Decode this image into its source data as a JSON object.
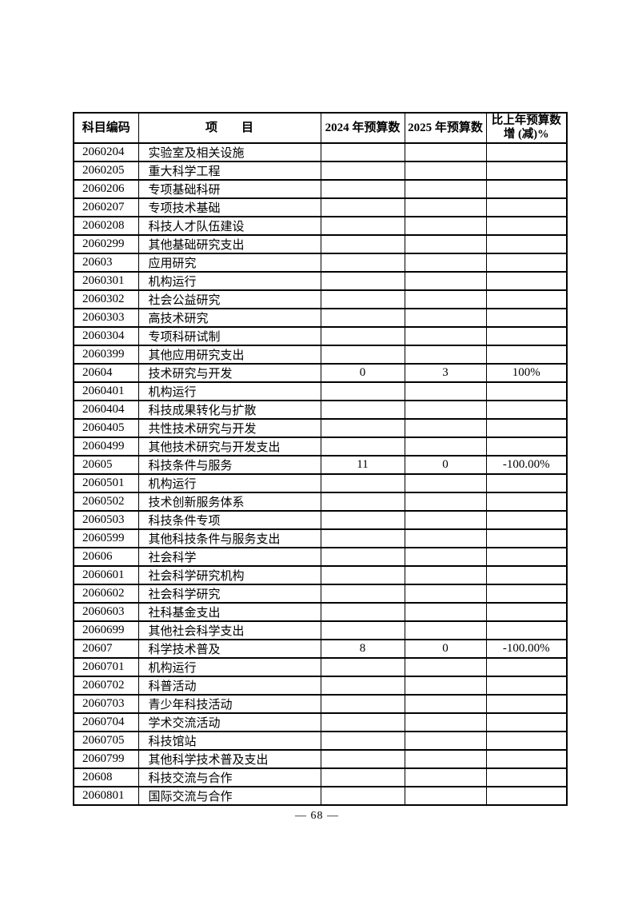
{
  "page": {
    "number_display": "— 68 —"
  },
  "table": {
    "headers": {
      "code": "科目编码",
      "item": "项　　目",
      "budget_2024": "2024 年预算数",
      "budget_2025": "2025 年预算数",
      "change": "比上年预算数\n增 (减)%"
    },
    "rows": [
      {
        "code": "2060204",
        "item": "实验室及相关设施",
        "y2024": "",
        "y2025": "",
        "change": ""
      },
      {
        "code": "2060205",
        "item": "重大科学工程",
        "y2024": "",
        "y2025": "",
        "change": ""
      },
      {
        "code": "2060206",
        "item": "专项基础科研",
        "y2024": "",
        "y2025": "",
        "change": ""
      },
      {
        "code": "2060207",
        "item": "专项技术基础",
        "y2024": "",
        "y2025": "",
        "change": ""
      },
      {
        "code": "2060208",
        "item": "科技人才队伍建设",
        "y2024": "",
        "y2025": "",
        "change": ""
      },
      {
        "code": "2060299",
        "item": "其他基础研究支出",
        "y2024": "",
        "y2025": "",
        "change": ""
      },
      {
        "code": "20603",
        "item": "应用研究",
        "y2024": "",
        "y2025": "",
        "change": ""
      },
      {
        "code": "2060301",
        "item": "机构运行",
        "y2024": "",
        "y2025": "",
        "change": ""
      },
      {
        "code": "2060302",
        "item": "社会公益研究",
        "y2024": "",
        "y2025": "",
        "change": ""
      },
      {
        "code": "2060303",
        "item": "高技术研究",
        "y2024": "",
        "y2025": "",
        "change": ""
      },
      {
        "code": "2060304",
        "item": "专项科研试制",
        "y2024": "",
        "y2025": "",
        "change": ""
      },
      {
        "code": "2060399",
        "item": "其他应用研究支出",
        "y2024": "",
        "y2025": "",
        "change": ""
      },
      {
        "code": "20604",
        "item": "技术研究与开发",
        "y2024": "0",
        "y2025": "3",
        "change": "100%"
      },
      {
        "code": "2060401",
        "item": "机构运行",
        "y2024": "",
        "y2025": "",
        "change": ""
      },
      {
        "code": "2060404",
        "item": "科技成果转化与扩散",
        "y2024": "",
        "y2025": "",
        "change": ""
      },
      {
        "code": "2060405",
        "item": "共性技术研究与开发",
        "y2024": "",
        "y2025": "",
        "change": ""
      },
      {
        "code": "2060499",
        "item": "其他技术研究与开发支出",
        "y2024": "",
        "y2025": "",
        "change": ""
      },
      {
        "code": "20605",
        "item": "科技条件与服务",
        "y2024": "11",
        "y2025": "0",
        "change": "-100.00%"
      },
      {
        "code": "2060501",
        "item": "机构运行",
        "y2024": "",
        "y2025": "",
        "change": ""
      },
      {
        "code": "2060502",
        "item": "技术创新服务体系",
        "y2024": "",
        "y2025": "",
        "change": ""
      },
      {
        "code": "2060503",
        "item": "科技条件专项",
        "y2024": "",
        "y2025": "",
        "change": ""
      },
      {
        "code": "2060599",
        "item": "其他科技条件与服务支出",
        "y2024": "",
        "y2025": "",
        "change": ""
      },
      {
        "code": "20606",
        "item": "社会科学",
        "y2024": "",
        "y2025": "",
        "change": ""
      },
      {
        "code": "2060601",
        "item": "社会科学研究机构",
        "y2024": "",
        "y2025": "",
        "change": ""
      },
      {
        "code": "2060602",
        "item": "社会科学研究",
        "y2024": "",
        "y2025": "",
        "change": ""
      },
      {
        "code": "2060603",
        "item": "社科基金支出",
        "y2024": "",
        "y2025": "",
        "change": ""
      },
      {
        "code": "2060699",
        "item": "其他社会科学支出",
        "y2024": "",
        "y2025": "",
        "change": ""
      },
      {
        "code": "20607",
        "item": "科学技术普及",
        "y2024": "8",
        "y2025": "0",
        "change": "-100.00%"
      },
      {
        "code": "2060701",
        "item": "机构运行",
        "y2024": "",
        "y2025": "",
        "change": ""
      },
      {
        "code": "2060702",
        "item": "科普活动",
        "y2024": "",
        "y2025": "",
        "change": ""
      },
      {
        "code": "2060703",
        "item": "青少年科技活动",
        "y2024": "",
        "y2025": "",
        "change": ""
      },
      {
        "code": "2060704",
        "item": "学术交流活动",
        "y2024": "",
        "y2025": "",
        "change": ""
      },
      {
        "code": "2060705",
        "item": "科技馆站",
        "y2024": "",
        "y2025": "",
        "change": ""
      },
      {
        "code": "2060799",
        "item": "其他科学技术普及支出",
        "y2024": "",
        "y2025": "",
        "change": ""
      },
      {
        "code": "20608",
        "item": "科技交流与合作",
        "y2024": "",
        "y2025": "",
        "change": ""
      },
      {
        "code": "2060801",
        "item": "国际交流与合作",
        "y2024": "",
        "y2025": "",
        "change": ""
      }
    ]
  }
}
